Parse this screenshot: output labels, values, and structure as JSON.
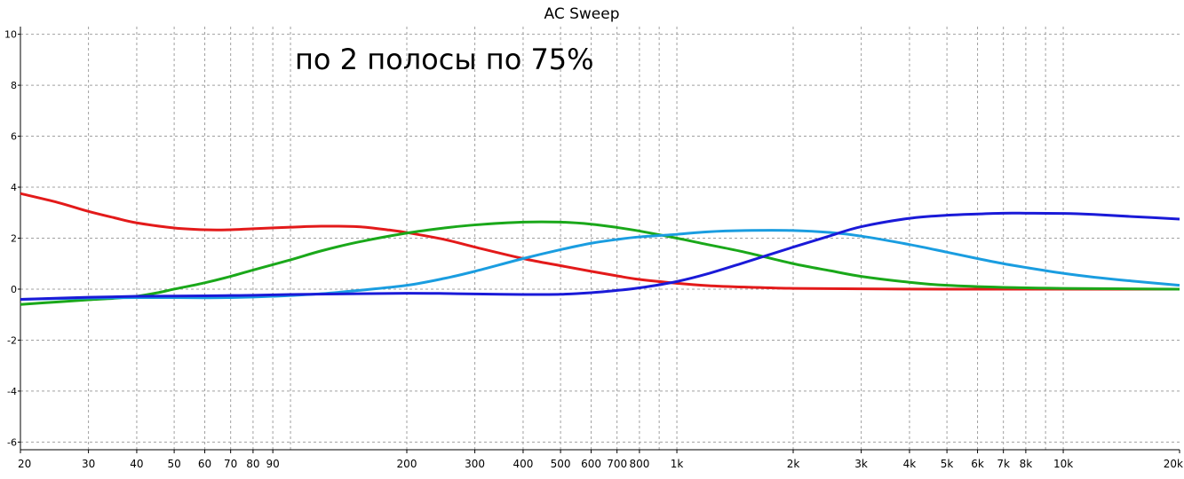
{
  "chart_data": {
    "type": "line",
    "title": "AC Sweep",
    "annotation": "по 2 полосы по 75%",
    "x_scale": "log",
    "xlim": [
      20,
      20000
    ],
    "ylim": [
      -6.3,
      10.3
    ],
    "grid": true,
    "x_ticks": [
      {
        "v": 20,
        "label": "20"
      },
      {
        "v": 30,
        "label": "30"
      },
      {
        "v": 40,
        "label": "40"
      },
      {
        "v": 50,
        "label": "50"
      },
      {
        "v": 60,
        "label": "60"
      },
      {
        "v": 70,
        "label": "70"
      },
      {
        "v": 80,
        "label": "80"
      },
      {
        "v": 90,
        "label": "90"
      },
      {
        "v": 200,
        "label": "200"
      },
      {
        "v": 300,
        "label": "300"
      },
      {
        "v": 400,
        "label": "400"
      },
      {
        "v": 500,
        "label": "500"
      },
      {
        "v": 600,
        "label": "600"
      },
      {
        "v": 700,
        "label": "700"
      },
      {
        "v": 800,
        "label": "800"
      },
      {
        "v": 1000,
        "label": "1k"
      },
      {
        "v": 2000,
        "label": "2k"
      },
      {
        "v": 3000,
        "label": "3k"
      },
      {
        "v": 4000,
        "label": "4k"
      },
      {
        "v": 5000,
        "label": "5k"
      },
      {
        "v": 6000,
        "label": "6k"
      },
      {
        "v": 7000,
        "label": "7k"
      },
      {
        "v": 8000,
        "label": "8k"
      },
      {
        "v": 10000,
        "label": "10k"
      },
      {
        "v": 20000,
        "label": "20k"
      }
    ],
    "x_grid_only": [
      100,
      900,
      9000
    ],
    "y_ticks": [
      {
        "v": 10,
        "label": "10"
      },
      {
        "v": 8,
        "label": "8"
      },
      {
        "v": 6,
        "label": "6"
      },
      {
        "v": 4,
        "label": "4"
      },
      {
        "v": 2,
        "label": "2"
      },
      {
        "v": 0,
        "label": "0"
      },
      {
        "v": -2,
        "label": "-2"
      },
      {
        "v": -4,
        "label": "-4"
      },
      {
        "v": -6,
        "label": "-6"
      }
    ],
    "series": [
      {
        "color": "#e31a1a",
        "points": [
          [
            20,
            3.75
          ],
          [
            25,
            3.4
          ],
          [
            30,
            3.05
          ],
          [
            35,
            2.8
          ],
          [
            40,
            2.6
          ],
          [
            50,
            2.4
          ],
          [
            60,
            2.33
          ],
          [
            70,
            2.33
          ],
          [
            80,
            2.37
          ],
          [
            100,
            2.43
          ],
          [
            120,
            2.47
          ],
          [
            150,
            2.45
          ],
          [
            180,
            2.32
          ],
          [
            200,
            2.22
          ],
          [
            250,
            1.95
          ],
          [
            300,
            1.65
          ],
          [
            400,
            1.2
          ],
          [
            500,
            0.92
          ],
          [
            600,
            0.7
          ],
          [
            700,
            0.52
          ],
          [
            800,
            0.38
          ],
          [
            1000,
            0.23
          ],
          [
            1200,
            0.14
          ],
          [
            1500,
            0.08
          ],
          [
            2000,
            0.03
          ],
          [
            3000,
            0.01
          ],
          [
            5000,
            0.0
          ],
          [
            10000,
            0.0
          ],
          [
            20000,
            0.0
          ]
        ]
      },
      {
        "color": "#1aa81a",
        "points": [
          [
            20,
            -0.6
          ],
          [
            25,
            -0.5
          ],
          [
            30,
            -0.42
          ],
          [
            35,
            -0.36
          ],
          [
            40,
            -0.28
          ],
          [
            45,
            -0.15
          ],
          [
            50,
            0.0
          ],
          [
            60,
            0.25
          ],
          [
            70,
            0.5
          ],
          [
            80,
            0.75
          ],
          [
            100,
            1.15
          ],
          [
            120,
            1.5
          ],
          [
            150,
            1.85
          ],
          [
            200,
            2.2
          ],
          [
            250,
            2.4
          ],
          [
            300,
            2.52
          ],
          [
            400,
            2.63
          ],
          [
            500,
            2.63
          ],
          [
            600,
            2.55
          ],
          [
            700,
            2.42
          ],
          [
            800,
            2.28
          ],
          [
            1000,
            2.0
          ],
          [
            1200,
            1.75
          ],
          [
            1500,
            1.45
          ],
          [
            2000,
            1.0
          ],
          [
            2500,
            0.72
          ],
          [
            3000,
            0.5
          ],
          [
            4000,
            0.27
          ],
          [
            5000,
            0.15
          ],
          [
            7000,
            0.07
          ],
          [
            10000,
            0.03
          ],
          [
            20000,
            0.0
          ]
        ]
      },
      {
        "color": "#1a9de0",
        "points": [
          [
            20,
            -0.4
          ],
          [
            30,
            -0.35
          ],
          [
            40,
            -0.33
          ],
          [
            50,
            -0.33
          ],
          [
            60,
            -0.34
          ],
          [
            70,
            -0.33
          ],
          [
            80,
            -0.31
          ],
          [
            90,
            -0.28
          ],
          [
            100,
            -0.25
          ],
          [
            120,
            -0.18
          ],
          [
            150,
            -0.05
          ],
          [
            200,
            0.15
          ],
          [
            250,
            0.42
          ],
          [
            300,
            0.7
          ],
          [
            400,
            1.2
          ],
          [
            500,
            1.55
          ],
          [
            600,
            1.8
          ],
          [
            700,
            1.95
          ],
          [
            800,
            2.05
          ],
          [
            1000,
            2.15
          ],
          [
            1200,
            2.25
          ],
          [
            1500,
            2.3
          ],
          [
            2000,
            2.3
          ],
          [
            2500,
            2.22
          ],
          [
            3000,
            2.08
          ],
          [
            4000,
            1.75
          ],
          [
            5000,
            1.45
          ],
          [
            6000,
            1.2
          ],
          [
            7000,
            1.0
          ],
          [
            8000,
            0.85
          ],
          [
            10000,
            0.62
          ],
          [
            12000,
            0.47
          ],
          [
            15000,
            0.32
          ],
          [
            20000,
            0.15
          ]
        ]
      },
      {
        "color": "#1a1ad8",
        "points": [
          [
            20,
            -0.4
          ],
          [
            30,
            -0.32
          ],
          [
            40,
            -0.28
          ],
          [
            50,
            -0.27
          ],
          [
            60,
            -0.26
          ],
          [
            70,
            -0.25
          ],
          [
            80,
            -0.24
          ],
          [
            100,
            -0.21
          ],
          [
            150,
            -0.18
          ],
          [
            200,
            -0.16
          ],
          [
            250,
            -0.17
          ],
          [
            300,
            -0.19
          ],
          [
            400,
            -0.21
          ],
          [
            500,
            -0.2
          ],
          [
            600,
            -0.14
          ],
          [
            700,
            -0.05
          ],
          [
            800,
            0.05
          ],
          [
            1000,
            0.3
          ],
          [
            1200,
            0.6
          ],
          [
            1500,
            1.05
          ],
          [
            2000,
            1.65
          ],
          [
            2500,
            2.1
          ],
          [
            3000,
            2.45
          ],
          [
            4000,
            2.78
          ],
          [
            5000,
            2.9
          ],
          [
            6000,
            2.95
          ],
          [
            7000,
            2.98
          ],
          [
            8000,
            2.98
          ],
          [
            10000,
            2.97
          ],
          [
            12000,
            2.93
          ],
          [
            15000,
            2.85
          ],
          [
            20000,
            2.75
          ]
        ]
      }
    ]
  }
}
